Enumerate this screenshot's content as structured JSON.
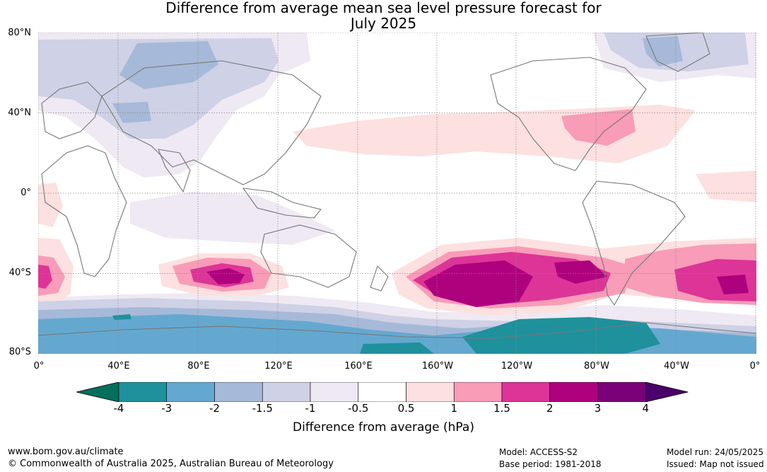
{
  "title_line1": "Difference from average mean sea level pressure forecast for",
  "title_line2": "July 2025",
  "lat_labels": [
    "80°N",
    "40°N",
    "0°",
    "40°S",
    "80°S"
  ],
  "lon_labels": [
    "0°",
    "40°E",
    "80°E",
    "120°E",
    "160°E",
    "160°W",
    "120°W",
    "80°W",
    "40°W",
    "0°"
  ],
  "colorbar": {
    "ticks": [
      "-4",
      "-3",
      "-2",
      "-1.5",
      "-1",
      "-0.5",
      "0.5",
      "1",
      "1.5",
      "2",
      "3",
      "4"
    ],
    "colors": [
      "#03705c",
      "#1f919c",
      "#64a8d0",
      "#a6b9d8",
      "#cfd1e6",
      "#efe9f3",
      "#ffffff",
      "#fde0e0",
      "#f89cb8",
      "#dd3497",
      "#ae017e",
      "#7a0177",
      "#49006a"
    ],
    "label": "Difference from average (hPa)"
  },
  "footer": {
    "site": "www.bom.gov.au/climate",
    "copyright": "© Commonwealth of Australia 2025, Australian Bureau of Meteorology",
    "model": "Model: ACCESS-S2",
    "base_period": "Base period: 1981-2018",
    "model_run": "Model run: 24/05/2025",
    "issued": "Issued: Map not issued"
  }
}
